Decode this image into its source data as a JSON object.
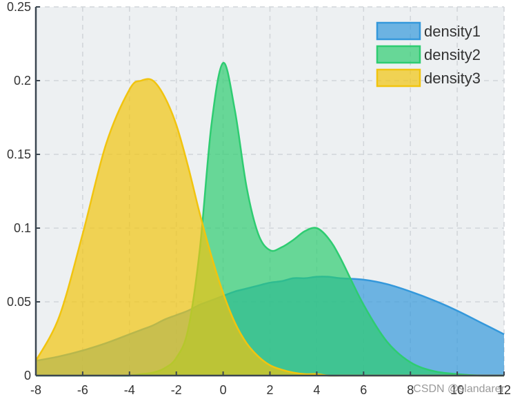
{
  "chart_data": {
    "type": "area",
    "xlim": [
      -8,
      12
    ],
    "ylim": [
      0,
      0.25
    ],
    "x_ticks": [
      -8,
      -6,
      -4,
      -2,
      0,
      2,
      4,
      6,
      8,
      10,
      12
    ],
    "x_tick_labels": [
      "-8",
      "-6",
      "-4",
      "-2",
      "0",
      "2",
      "4",
      "6",
      "8",
      "10",
      "12"
    ],
    "y_ticks": [
      0,
      0.05,
      0.1,
      0.15,
      0.2,
      0.25
    ],
    "y_tick_labels": [
      "0",
      "0.05",
      "0.1",
      "0.15",
      "0.2",
      "0.25"
    ],
    "grid": true,
    "legend_position": "top-right",
    "x": [
      -8,
      -7,
      -6,
      -5,
      -4,
      -3.5,
      -3,
      -2.5,
      -2,
      -1.5,
      -1,
      -0.5,
      0,
      0.5,
      1,
      1.5,
      2,
      2.5,
      3,
      3.5,
      4,
      4.5,
      5,
      6,
      7,
      8,
      9,
      10,
      11,
      12
    ],
    "series": [
      {
        "name": "density1",
        "color": "#3498db",
        "values": [
          0.01,
          0.013,
          0.017,
          0.022,
          0.028,
          0.031,
          0.034,
          0.038,
          0.041,
          0.044,
          0.048,
          0.051,
          0.054,
          0.057,
          0.059,
          0.061,
          0.063,
          0.064,
          0.066,
          0.066,
          0.067,
          0.067,
          0.066,
          0.065,
          0.062,
          0.057,
          0.051,
          0.044,
          0.036,
          0.028
        ]
      },
      {
        "name": "density2",
        "color": "#2ecc71",
        "values": [
          0.0,
          0.0,
          0.0,
          0.0,
          0.0,
          0.001,
          0.002,
          0.005,
          0.012,
          0.031,
          0.085,
          0.17,
          0.212,
          0.18,
          0.128,
          0.096,
          0.085,
          0.087,
          0.092,
          0.098,
          0.1,
          0.093,
          0.08,
          0.048,
          0.023,
          0.009,
          0.003,
          0.001,
          0.0,
          0.0
        ]
      },
      {
        "name": "density3",
        "color": "#f1c40f",
        "values": [
          0.01,
          0.04,
          0.096,
          0.157,
          0.194,
          0.2,
          0.2,
          0.189,
          0.17,
          0.142,
          0.11,
          0.081,
          0.056,
          0.036,
          0.022,
          0.013,
          0.007,
          0.004,
          0.002,
          0.001,
          0.001,
          0.0,
          0.0,
          0.0,
          0.0,
          0.0,
          0.0,
          0.0,
          0.0,
          0.0
        ]
      }
    ]
  },
  "watermark": "CSDN @slandarer"
}
